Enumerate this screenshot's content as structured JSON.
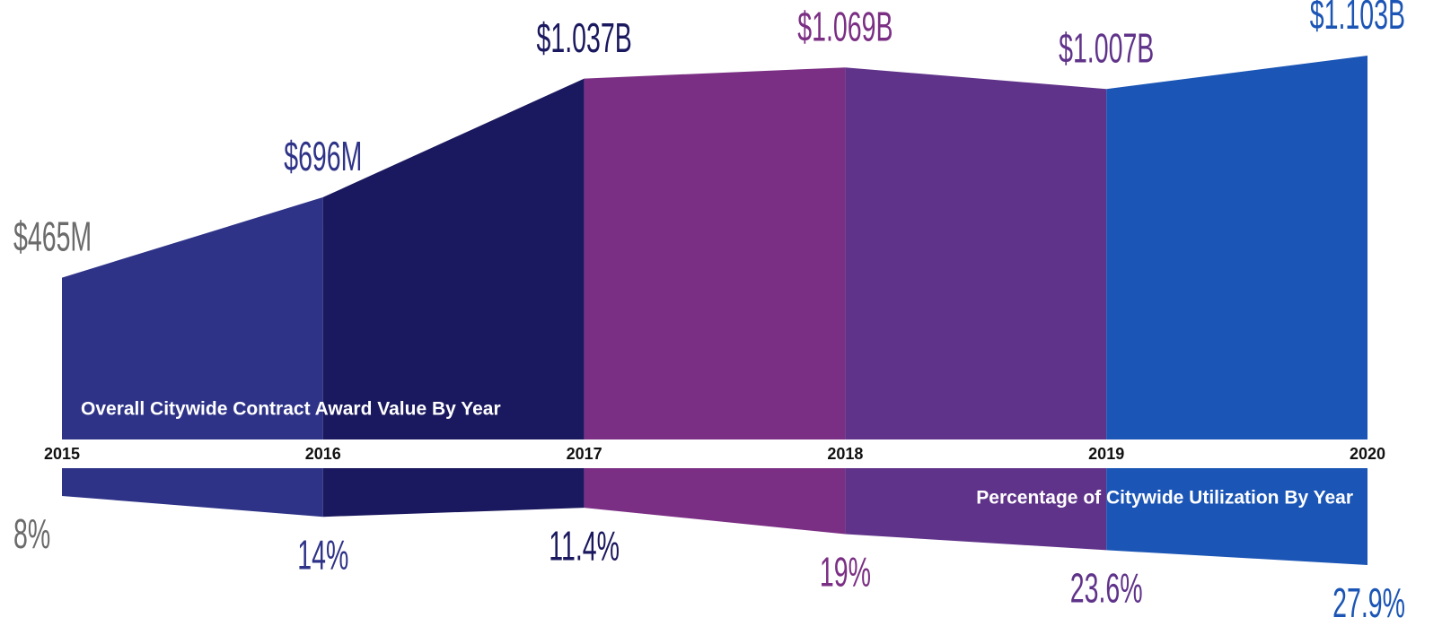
{
  "chart_data": {
    "type": "area",
    "categories": [
      "2015",
      "2016",
      "2017",
      "2018",
      "2019",
      "2020"
    ],
    "series": [
      {
        "name": "Overall Citywide Contract Award Value By Year",
        "values": [
          465,
          696,
          1037,
          1069,
          1007,
          1103
        ],
        "value_labels": [
          "$465M",
          "$696M",
          "$1.037B",
          "$1.069B",
          "$1.007B",
          "$1.103B"
        ]
      },
      {
        "name": "Percentage of Citywide Utilization By Year",
        "values": [
          8,
          14,
          11.4,
          19,
          23.6,
          27.9
        ],
        "value_labels": [
          "8%",
          "14%",
          "11.4%",
          "19%",
          "23.6%",
          "27.9%"
        ]
      }
    ],
    "segment_colors": [
      "#2e3388",
      "#1a185e",
      "#7b2f84",
      "#60338a",
      "#1b55b5"
    ],
    "label_colors": [
      "#6b6b6b",
      "#2e3388",
      "#1a185e",
      "#7b2f84",
      "#60338a",
      "#1b55b5"
    ]
  }
}
